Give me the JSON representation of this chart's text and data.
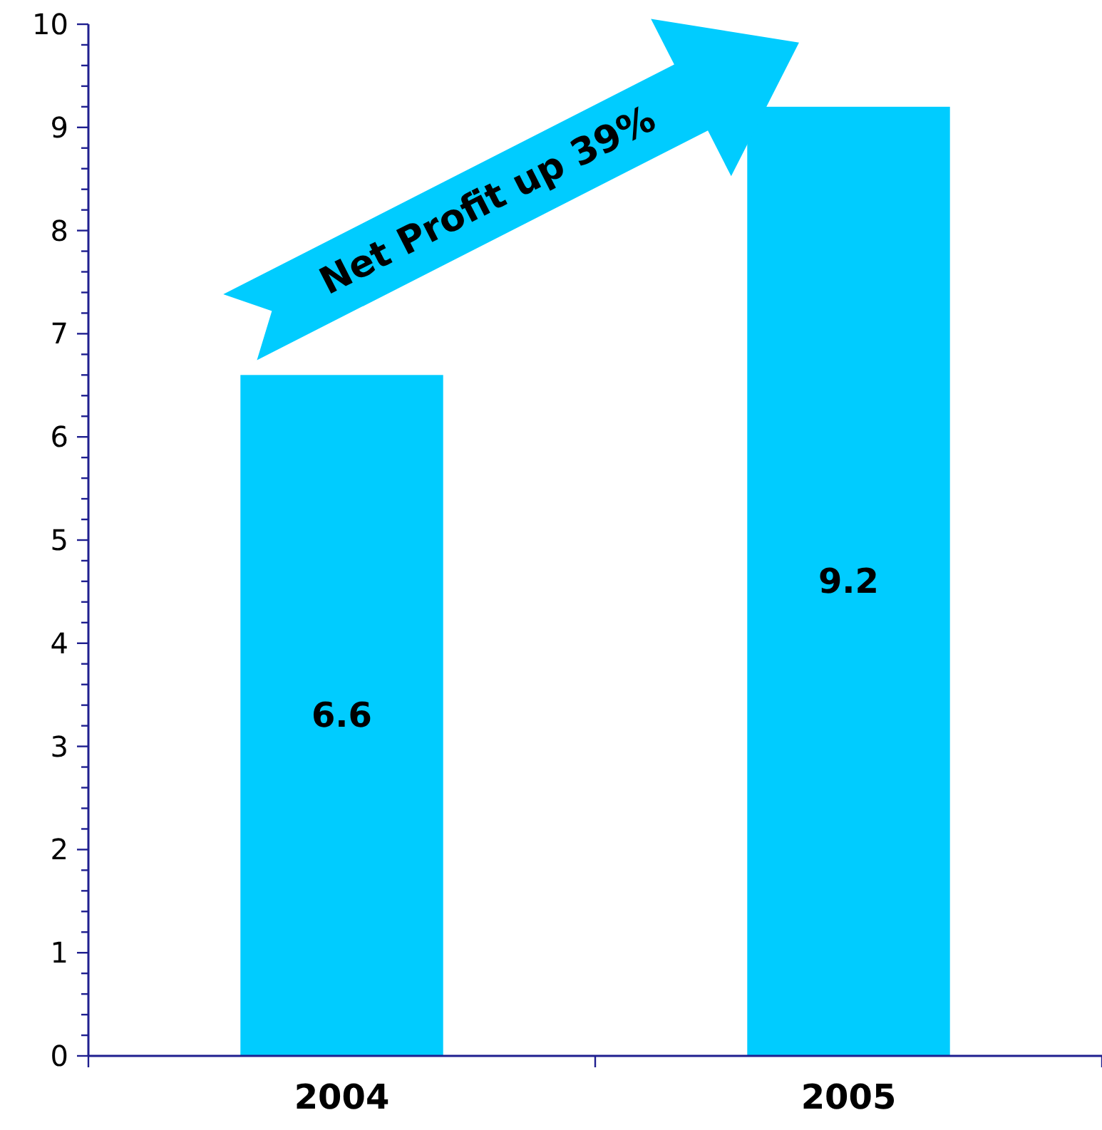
{
  "chart_data": {
    "type": "bar",
    "categories": [
      "2004",
      "2005"
    ],
    "values": [
      6.6,
      9.2
    ],
    "color": "#00ccff",
    "data_labels": true,
    "ylim": [
      0,
      10
    ],
    "yticks": [
      0,
      {
        "value": 0.2,
        "label": null
      },
      {
        "value": 0.4,
        "label": null
      },
      {
        "value": 0.6,
        "label": null
      },
      {
        "value": 0.8,
        "label": null
      },
      1,
      {
        "value": 1.2,
        "label": null
      },
      {
        "value": 1.4,
        "label": null
      },
      {
        "value": 1.6,
        "label": null
      },
      {
        "value": 1.8,
        "label": null
      },
      2,
      {
        "value": 2.2,
        "label": null
      },
      {
        "value": 2.4,
        "label": null
      },
      {
        "value": 2.6,
        "label": null
      },
      {
        "value": 2.8,
        "label": null
      },
      3,
      {
        "value": 3.2,
        "label": null
      },
      {
        "value": 3.4,
        "label": null
      },
      {
        "value": 3.6,
        "label": null
      },
      {
        "value": 3.8,
        "label": null
      },
      4,
      {
        "value": 4.2,
        "label": null
      },
      {
        "value": 4.4,
        "label": null
      },
      {
        "value": 4.6,
        "label": null
      },
      {
        "value": 4.8,
        "label": null
      },
      5,
      {
        "value": 5.2,
        "label": null
      },
      {
        "value": 5.4,
        "label": null
      },
      {
        "value": 5.6,
        "label": null
      },
      {
        "value": 5.8,
        "label": null
      },
      6,
      {
        "value": 6.2,
        "label": null
      },
      {
        "value": 6.4,
        "label": null
      },
      {
        "value": 6.6,
        "label": null
      },
      {
        "value": 6.8,
        "label": null
      },
      7,
      {
        "value": 7.2,
        "label": null
      },
      {
        "value": 7.4,
        "label": null
      },
      {
        "value": 7.6,
        "label": null
      },
      {
        "value": 7.8,
        "label": null
      },
      8,
      {
        "value": 8.2,
        "label": null
      },
      {
        "value": 8.4,
        "label": null
      },
      {
        "value": 8.6,
        "label": null
      },
      {
        "value": 8.8,
        "label": null
      },
      9,
      {
        "value": 9.2,
        "label": null
      },
      {
        "value": 9.4,
        "label": null
      },
      {
        "value": 9.6,
        "label": null
      },
      {
        "value": 9.8,
        "label": null
      },
      10
    ],
    "annotations": [
      "Net Profit up 39%"
    ],
    "grid": false
  }
}
